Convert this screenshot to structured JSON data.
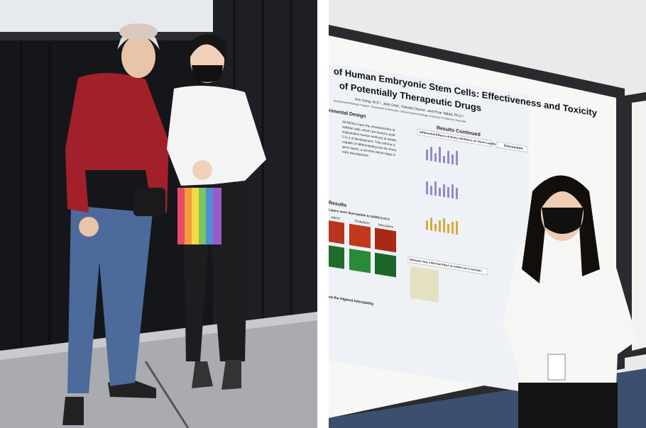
{
  "poster": {
    "title_line1": "of Human Embryonic Stem Cells: Effectiveness and Toxicity",
    "title_line2": "of Potentially Therapeutic Drugs",
    "authors": "Ann Song, M.S.¹, Jack Ona¹, Claudia Osuna¹, and Prue Talbot, Ph.D.¹",
    "affiliation": "Developmental Biology Program, ¹Department of Molecular, Cell and Systems Biology, University of California, Riverside",
    "sections": {
      "design": "rimental Design",
      "results_continued": "Results Continued",
      "entry_inhibitors": "Differential Effects of Entry Inhibitors on Germ Layers",
      "discussion": "Discussion",
      "results": "Results",
      "susceptible": "Layers were Susceptible to SARS-CoV-2",
      "endoderm": "Endoderm",
      "mesoderm": "Mesoderm",
      "ectoderm": "oderm",
      "melatonin": "Melatonin Has a Minimal Effect on SARS-CoV-2 Infection",
      "infectability": "ed the Highest Infectability"
    },
    "design_text": [
      "H9 hESCs have the characteristics of",
      "epiblast cells, which are found in post-",
      "implantation human embryos at weeks",
      "2 to 3 of development. This cell line is",
      "capable of differentiating into the three",
      "germ layers, a second critical stage in",
      "early development."
    ]
  }
}
